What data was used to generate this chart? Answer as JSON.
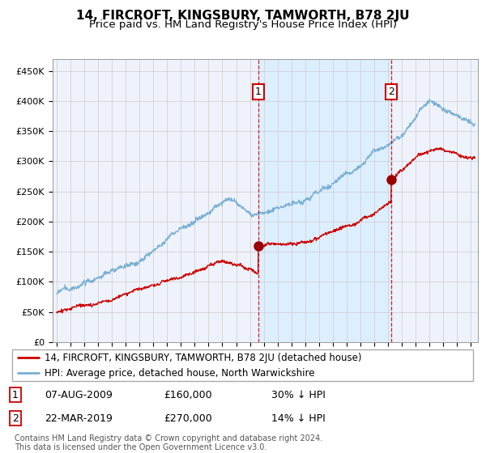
{
  "title": "14, FIRCROFT, KINGSBURY, TAMWORTH, B78 2JU",
  "subtitle": "Price paid vs. HM Land Registry's House Price Index (HPI)",
  "yticks": [
    0,
    50000,
    100000,
    150000,
    200000,
    250000,
    300000,
    350000,
    400000,
    450000
  ],
  "xlim_start": 1994.7,
  "xlim_end": 2025.5,
  "ylim": [
    0,
    470000
  ],
  "sale1_date": 2009.6,
  "sale1_price": 160000,
  "sale2_date": 2019.23,
  "sale2_price": 270000,
  "red_line_color": "#cc0000",
  "blue_line_color": "#7ab0d4",
  "shade_color": "#ddeeff",
  "sale_dot_color": "#990000",
  "background_color": "#eef2fb",
  "grid_color": "#cccccc",
  "legend1_text": "14, FIRCROFT, KINGSBURY, TAMWORTH, B78 2JU (detached house)",
  "legend2_text": "HPI: Average price, detached house, North Warwickshire",
  "footnote": "Contains HM Land Registry data © Crown copyright and database right 2024.\nThis data is licensed under the Open Government Licence v3.0.",
  "title_fontsize": 11,
  "subtitle_fontsize": 9.5,
  "tick_label_fontsize": 8,
  "legend_fontsize": 8.5,
  "annot_fontsize": 9
}
